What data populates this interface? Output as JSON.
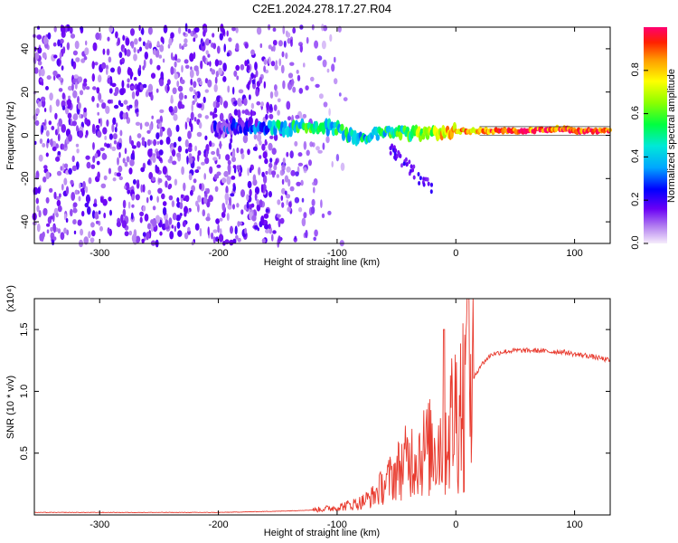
{
  "title": "C2E1.2024.278.17.27.R04",
  "chart_data": [
    {
      "type": "heatmap",
      "xlabel": "Height of straight line (km)",
      "ylabel": "Frequency (Hz)",
      "xlim": [
        -355,
        130
      ],
      "ylim": [
        -50,
        50
      ],
      "x_ticks": [
        -300,
        -200,
        -100,
        0,
        100
      ],
      "x_tick_labels": [
        "-300",
        "-200",
        "-100",
        "0",
        "100"
      ],
      "y_ticks": [
        -40,
        -20,
        0,
        20,
        40
      ],
      "y_tick_labels": [
        "-40",
        "-20",
        "0",
        "20",
        "40"
      ],
      "colorbar": {
        "label": "Normalized spectral amplitude",
        "range": [
          0,
          1
        ],
        "ticks": [
          0.0,
          0.2,
          0.4,
          0.6,
          0.8
        ],
        "tick_labels": [
          "0.0",
          "0.2",
          "0.4",
          "0.6",
          "0.8"
        ]
      },
      "ridge": {
        "x": [
          -200,
          -180,
          -160,
          -140,
          -120,
          -100,
          -80,
          -60,
          -40,
          -20,
          0,
          20,
          40,
          60,
          80,
          90,
          100,
          130
        ],
        "frequency": [
          3,
          4,
          4,
          3,
          4,
          3,
          -2,
          2,
          1,
          1,
          2,
          2,
          2,
          2,
          3,
          3,
          2,
          2
        ],
        "amplitude": [
          0.15,
          0.2,
          0.35,
          0.45,
          0.5,
          0.45,
          0.45,
          0.45,
          0.55,
          0.7,
          0.8,
          0.85,
          0.9,
          0.9,
          0.9,
          0.95,
          0.95,
          0.95
        ]
      },
      "noise_region_xlim": [
        -355,
        -110
      ],
      "grid": false
    },
    {
      "type": "line",
      "xlabel": "Height of straight line (km)",
      "ylabel": "SNR (10 * v/v)",
      "y_multiplier_label": "(x10⁴)",
      "xlim": [
        -355,
        130
      ],
      "ylim": [
        0,
        1.75
      ],
      "x_ticks": [
        -300,
        -200,
        -100,
        0,
        100
      ],
      "x_tick_labels": [
        "-300",
        "-200",
        "-100",
        "0",
        "100"
      ],
      "y_ticks": [
        0.5,
        1.0,
        1.5
      ],
      "y_tick_labels": [
        "0.5",
        "1.0",
        "1.5"
      ],
      "series": [
        {
          "color": "#e83a2e",
          "x": [
            -355,
            -300,
            -250,
            -200,
            -150,
            -120,
            -100,
            -90,
            -80,
            -70,
            -60,
            -50,
            -40,
            -30,
            -20,
            -10,
            0,
            5,
            10,
            15,
            20,
            30,
            40,
            50,
            60,
            70,
            80,
            90,
            100,
            110,
            120,
            130
          ],
          "values": [
            0.02,
            0.02,
            0.02,
            0.02,
            0.03,
            0.04,
            0.06,
            0.08,
            0.1,
            0.15,
            0.25,
            0.35,
            0.45,
            0.5,
            0.55,
            0.6,
            0.85,
            0.95,
            1.0,
            1.1,
            1.2,
            1.3,
            1.32,
            1.33,
            1.33,
            1.33,
            1.32,
            1.32,
            1.3,
            1.29,
            1.27,
            1.25
          ]
        }
      ],
      "grid": false
    }
  ]
}
